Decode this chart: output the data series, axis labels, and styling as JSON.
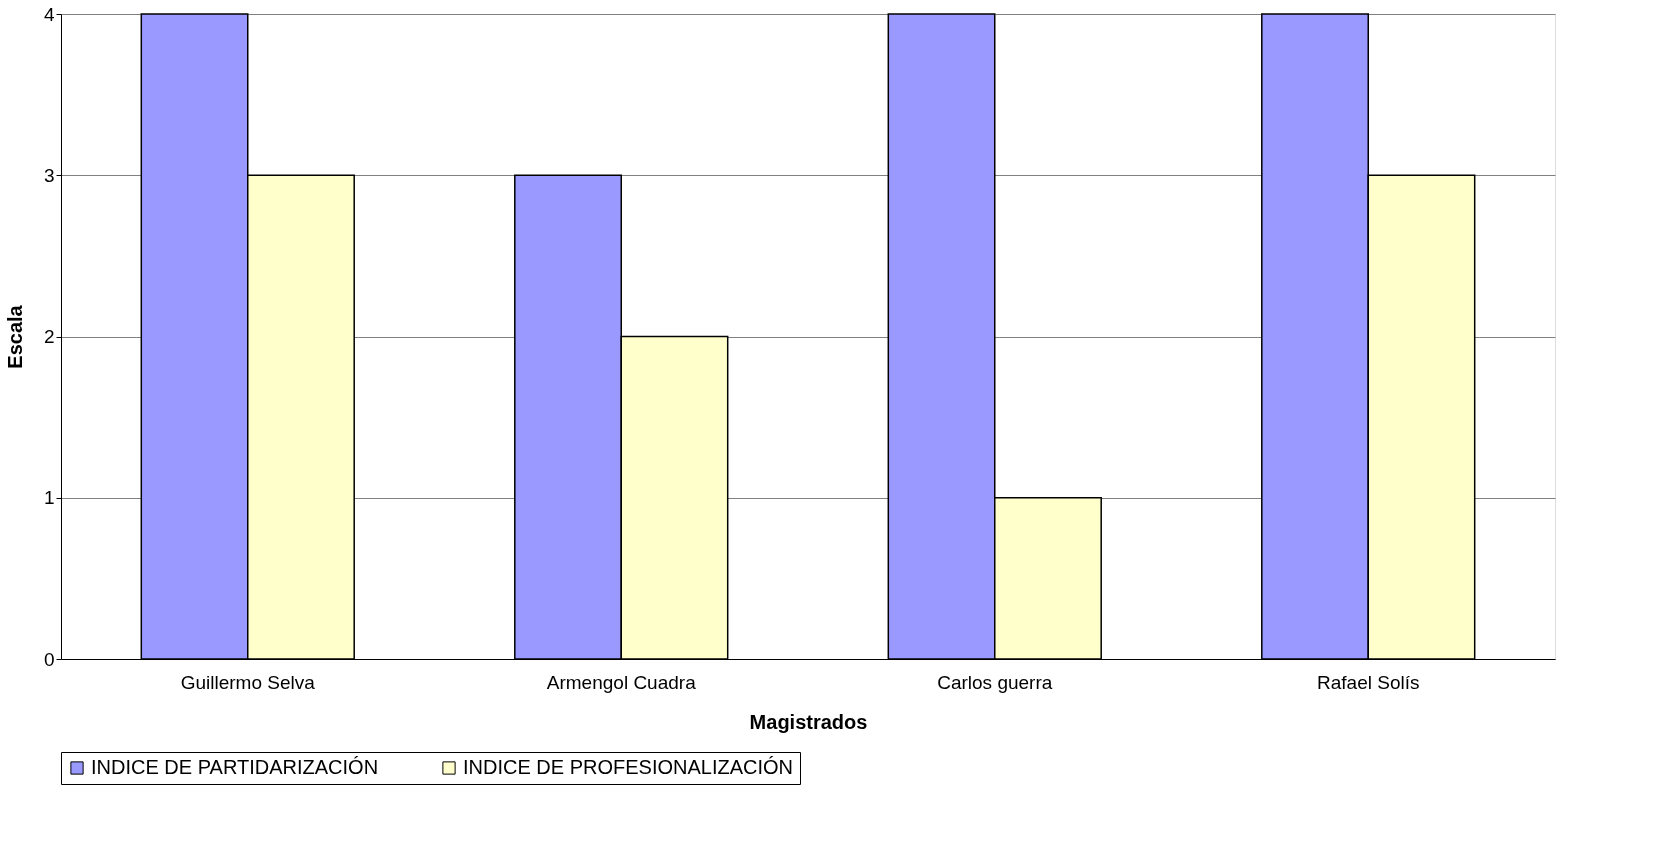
{
  "chart_data": {
    "type": "bar",
    "xlabel": "Magistrados",
    "ylabel": "Escala",
    "categories": [
      "Guillermo Selva",
      "Armengol Cuadra",
      "Carlos guerra",
      "Rafael Solís"
    ],
    "series": [
      {
        "name": "INDICE DE PARTIDARIZACIÓN",
        "color": "#9999ff",
        "values": [
          4,
          3,
          4,
          4
        ]
      },
      {
        "name": "INDICE DE PROFESIONALIZACIÓN",
        "color": "#ffffcc",
        "values": [
          3,
          2,
          1,
          3
        ]
      }
    ],
    "ylim": [
      0,
      4
    ],
    "yticks": [
      0,
      1,
      2,
      3,
      4
    ],
    "grid": "y",
    "legend": "bottom"
  }
}
